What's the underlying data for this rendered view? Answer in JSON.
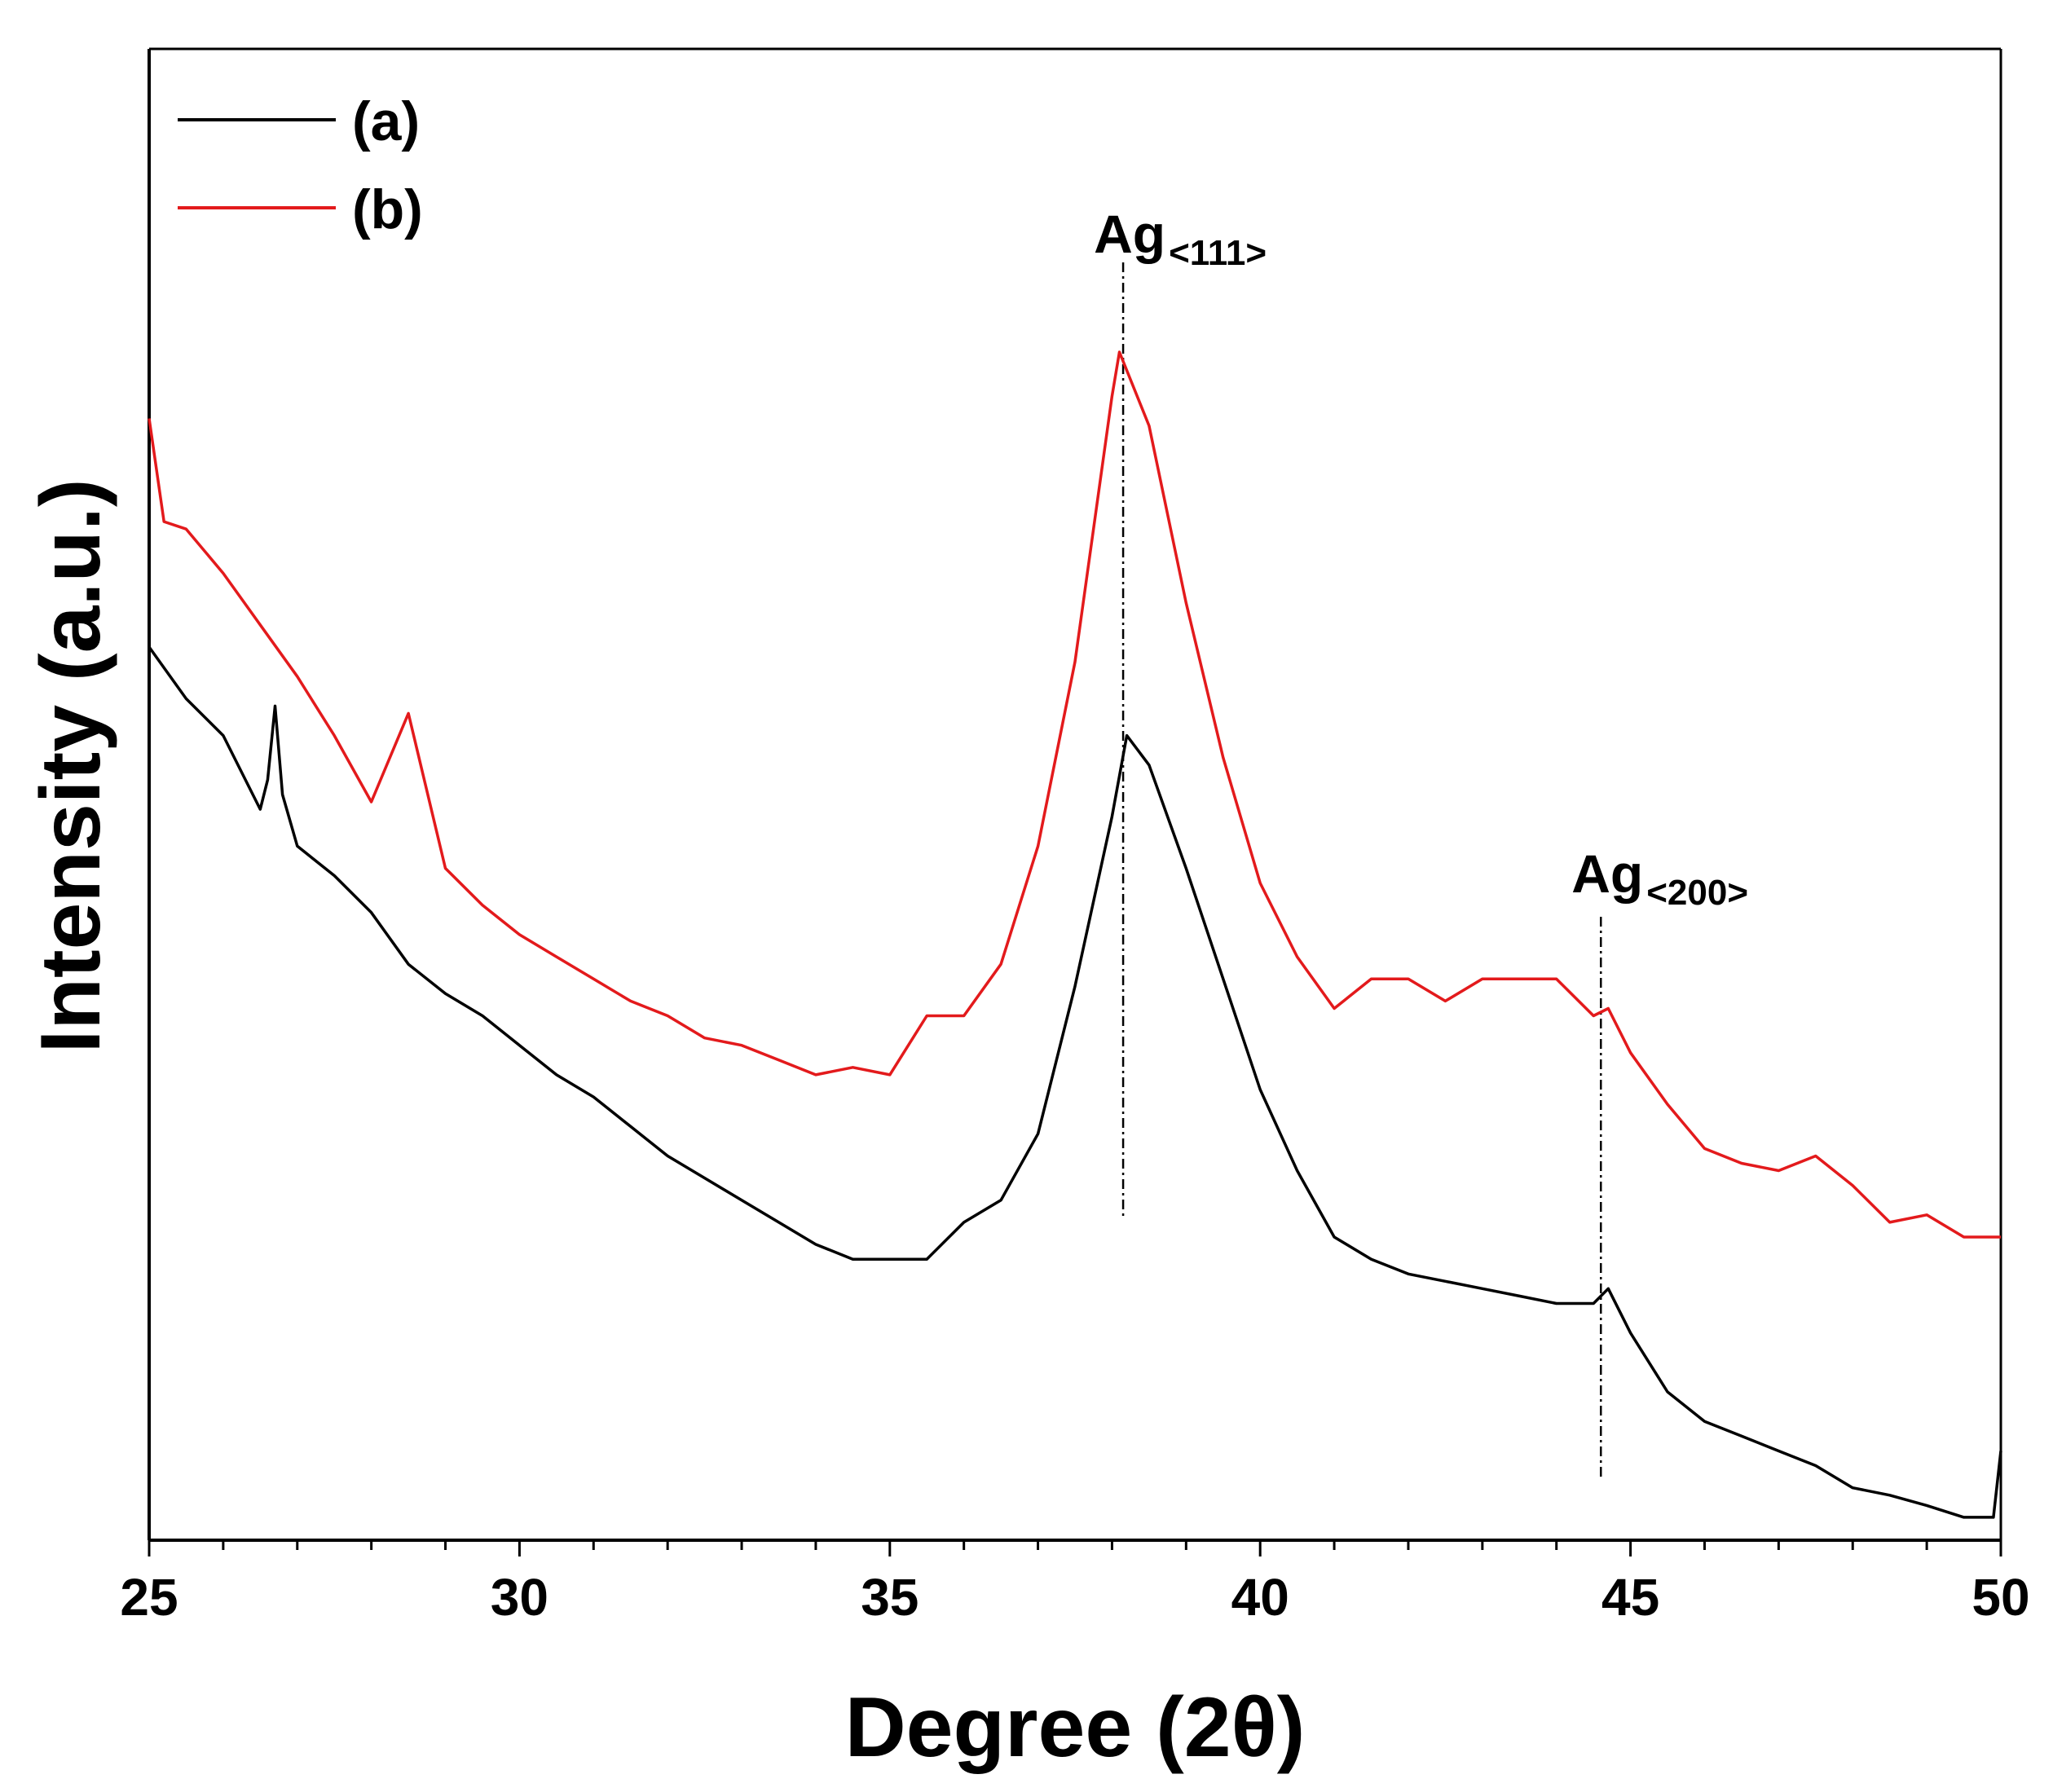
{
  "chart_data": {
    "type": "line",
    "title": "",
    "xlabel": "Degree (2θ)",
    "ylabel": "Intensity (a.u.)",
    "xlim": [
      25,
      50
    ],
    "ylim": [
      0,
      100
    ],
    "y_ticks_shown": false,
    "xticks": [
      25,
      30,
      35,
      40,
      45,
      50
    ],
    "xtick_labels": [
      "25",
      "30",
      "35",
      "40",
      "45",
      "50"
    ],
    "legend": {
      "position": "top-left",
      "entries": [
        "(a)",
        "(b)"
      ]
    },
    "series": [
      {
        "name": "(a)",
        "color": "#000000",
        "x": [
          25.0,
          25.5,
          26.0,
          26.5,
          26.6,
          26.7,
          26.8,
          27.0,
          27.5,
          28.0,
          28.5,
          29.0,
          29.5,
          30.0,
          30.5,
          31.0,
          31.5,
          32.0,
          32.5,
          33.0,
          33.5,
          34.0,
          34.5,
          35.0,
          35.5,
          36.0,
          36.5,
          37.0,
          37.5,
          38.0,
          38.2,
          38.5,
          39.0,
          39.5,
          40.0,
          40.5,
          41.0,
          41.5,
          42.0,
          42.5,
          43.0,
          43.5,
          44.0,
          44.5,
          44.7,
          45.0,
          45.5,
          46.0,
          46.5,
          47.0,
          47.5,
          48.0,
          48.5,
          49.0,
          49.5,
          49.9,
          50.0
        ],
        "y": [
          60.0,
          56.5,
          54.0,
          49.0,
          51.0,
          56.0,
          50.0,
          46.5,
          44.5,
          42.0,
          38.5,
          36.5,
          35.0,
          33.0,
          31.0,
          29.5,
          27.5,
          25.5,
          24.0,
          22.5,
          21.0,
          19.5,
          18.5,
          18.5,
          18.5,
          21.0,
          22.5,
          27.0,
          37.0,
          48.5,
          54.0,
          52.0,
          45.0,
          37.5,
          30.0,
          24.5,
          20.0,
          18.5,
          17.5,
          17.0,
          16.5,
          16.0,
          15.5,
          15.5,
          16.5,
          13.5,
          9.5,
          7.5,
          6.5,
          5.5,
          4.5,
          3.0,
          2.5,
          1.8,
          1.0,
          1.0,
          5.5
        ]
      },
      {
        "name": "(b)",
        "color": "#e31a1c",
        "x": [
          25.0,
          25.2,
          25.5,
          26.0,
          26.5,
          27.0,
          27.5,
          28.0,
          28.5,
          29.0,
          29.5,
          30.0,
          30.5,
          31.0,
          31.5,
          32.0,
          32.5,
          33.0,
          33.5,
          34.0,
          34.5,
          35.0,
          35.5,
          36.0,
          36.5,
          37.0,
          37.5,
          38.0,
          38.1,
          38.5,
          39.0,
          39.5,
          40.0,
          40.5,
          41.0,
          41.5,
          42.0,
          42.5,
          43.0,
          43.5,
          44.0,
          44.5,
          44.7,
          45.0,
          45.5,
          46.0,
          46.5,
          47.0,
          47.5,
          48.0,
          48.5,
          49.0,
          49.5,
          50.0
        ],
        "y": [
          75.5,
          68.5,
          68.0,
          65.0,
          61.5,
          58.0,
          54.0,
          49.5,
          55.5,
          45.0,
          42.5,
          40.5,
          39.0,
          37.5,
          36.0,
          35.0,
          33.5,
          33.0,
          32.0,
          31.0,
          31.5,
          31.0,
          35.0,
          35.0,
          38.5,
          46.5,
          59.0,
          77.0,
          80.0,
          75.0,
          63.0,
          52.5,
          44.0,
          39.0,
          35.5,
          37.5,
          37.5,
          36.0,
          37.5,
          37.5,
          37.5,
          35.0,
          35.5,
          32.5,
          29.0,
          26.0,
          25.0,
          24.5,
          25.5,
          23.5,
          21.0,
          21.5,
          20.0,
          20.0
        ]
      }
    ],
    "annotations": [
      {
        "main": "Ag",
        "sub": "<111>",
        "x": 38.15
      },
      {
        "main": "Ag",
        "sub": "<200>",
        "x": 44.6
      }
    ]
  }
}
